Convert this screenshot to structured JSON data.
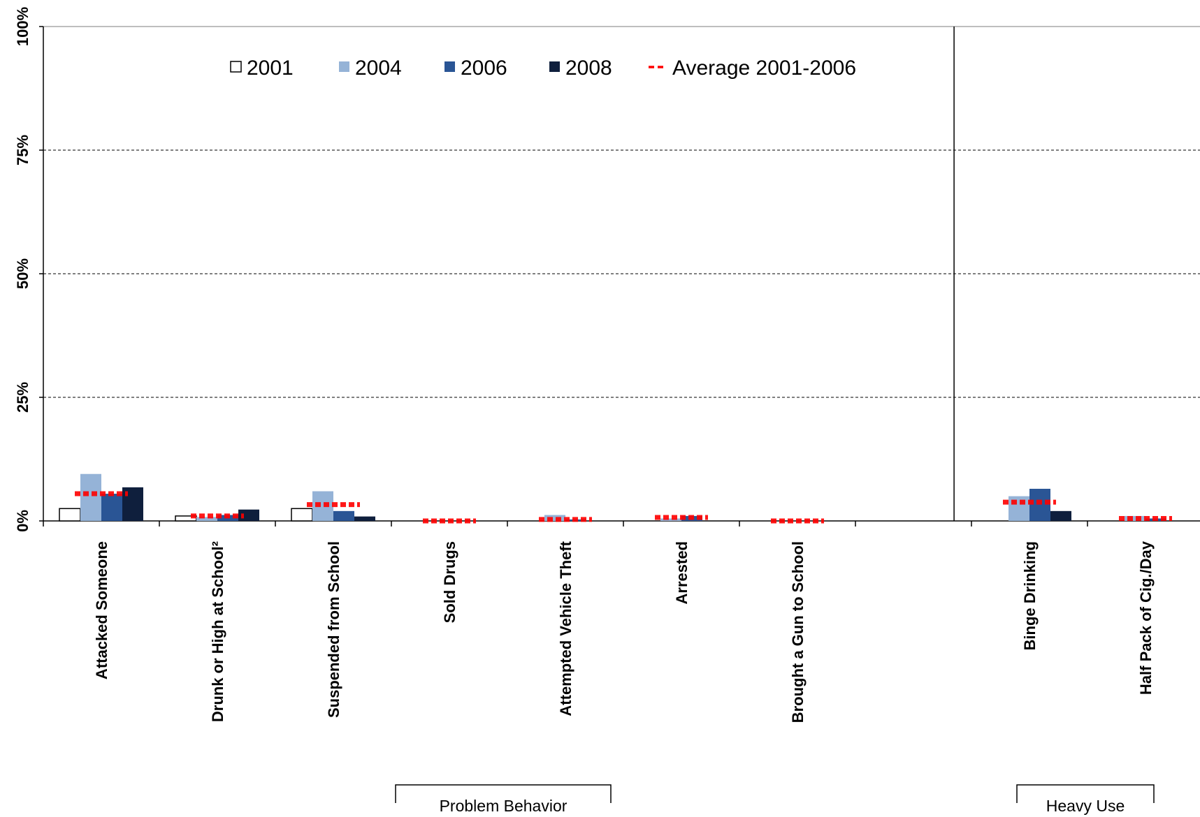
{
  "chart_data": {
    "type": "bar",
    "ylim": [
      0,
      100
    ],
    "y_ticks": [
      "0%",
      "25%",
      "50%",
      "75%",
      "100%"
    ],
    "y_tick_values": [
      0,
      25,
      50,
      75,
      100
    ],
    "grid": "horizontal dashed",
    "legend_placement": "top",
    "categories": [
      "Attacked  Someone",
      "Drunk or High at School²",
      "Suspended from School",
      "Sold Drugs",
      "Attempted  Vehicle Theft",
      "Arrested",
      "Brought a Gun to School",
      "",
      "Binge Drinking",
      "Half Pack of Cig./Day"
    ],
    "series": [
      {
        "name": "2001",
        "color": "#ffffff",
        "values": [
          2.5,
          1.0,
          2.5,
          0,
          0,
          0,
          0,
          null,
          0,
          0
        ]
      },
      {
        "name": "2004",
        "color": "#95b3d7",
        "values": [
          9.5,
          0.8,
          6.0,
          0,
          1.2,
          0.5,
          0,
          null,
          5.0,
          1.0
        ]
      },
      {
        "name": "2006",
        "color": "#2a5595",
        "values": [
          5.5,
          1.2,
          2.0,
          0,
          0.3,
          1.0,
          0,
          null,
          6.5,
          0.5
        ]
      },
      {
        "name": "2008",
        "color": "#0f1f3d",
        "values": [
          6.8,
          2.3,
          0.9,
          0,
          0,
          0,
          0,
          null,
          2.0,
          0
        ]
      }
    ],
    "average": {
      "name": "Average 2001-2006",
      "color": "#ff0000",
      "values": [
        5.5,
        1.0,
        3.3,
        0,
        0.3,
        0.7,
        0,
        null,
        3.8,
        0.5
      ]
    },
    "group_labels": [
      {
        "label": "Problem Behavior"
      },
      {
        "label": "Heavy Use"
      }
    ]
  }
}
